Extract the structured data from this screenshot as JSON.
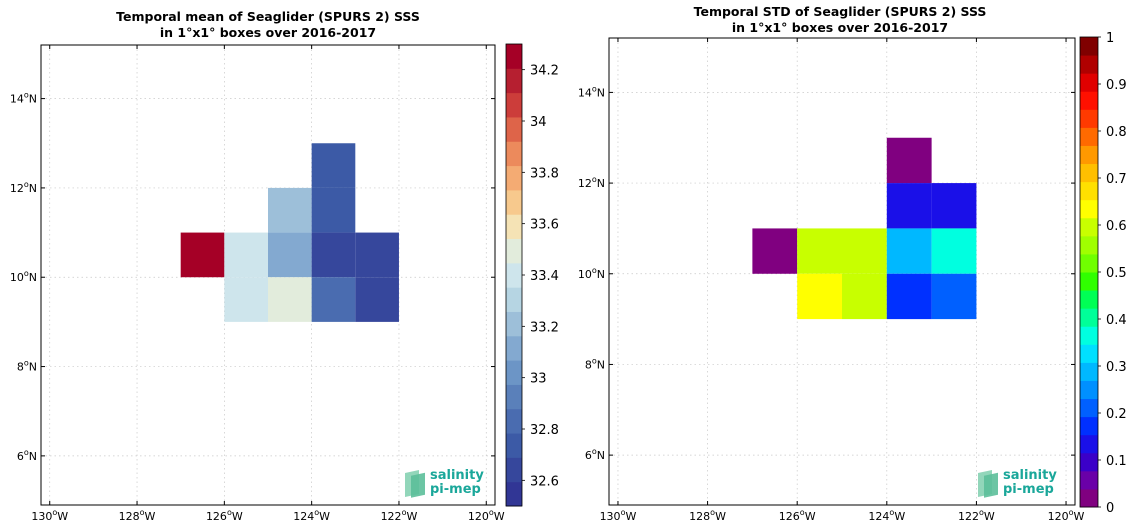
{
  "chart_data": [
    {
      "type": "heatmap",
      "title_line1": "Temporal mean of Seaglider (SPURS 2) SSS",
      "title_line2": "in 1°x1° boxes over 2016-2017",
      "xlim": [
        -130.2,
        -119.8
      ],
      "ylim": [
        4.9,
        15.2
      ],
      "x_ticks": [
        {
          "value": -130,
          "label": "130°W"
        },
        {
          "value": -128,
          "label": "128°W"
        },
        {
          "value": -126,
          "label": "126°W"
        },
        {
          "value": -124,
          "label": "124°W"
        },
        {
          "value": -122,
          "label": "122°W"
        },
        {
          "value": -120,
          "label": "120°W"
        }
      ],
      "y_ticks": [
        {
          "value": 6,
          "label": "6°N"
        },
        {
          "value": 8,
          "label": "8°N"
        },
        {
          "value": 10,
          "label": "10°N"
        },
        {
          "value": 12,
          "label": "12°N"
        },
        {
          "value": 14,
          "label": "14°N"
        }
      ],
      "grid": true,
      "cells": [
        {
          "lon": -127,
          "lat": 10,
          "value": 34.35
        },
        {
          "lon": -126,
          "lat": 10,
          "value": 33.4
        },
        {
          "lon": -126,
          "lat": 9,
          "value": 33.38
        },
        {
          "lon": -125,
          "lat": 11,
          "value": 33.25
        },
        {
          "lon": -125,
          "lat": 10,
          "value": 33.15
        },
        {
          "lon": -125,
          "lat": 9,
          "value": 33.45
        },
        {
          "lon": -124,
          "lat": 12,
          "value": 32.75
        },
        {
          "lon": -124,
          "lat": 11,
          "value": 32.75
        },
        {
          "lon": -124,
          "lat": 10,
          "value": 32.62
        },
        {
          "lon": -124,
          "lat": 9,
          "value": 32.85
        },
        {
          "lon": -123,
          "lat": 10,
          "value": 32.62
        },
        {
          "lon": -123,
          "lat": 9,
          "value": 32.6
        }
      ],
      "colorbar": {
        "vmin": 32.5,
        "vmax": 34.3,
        "ticks": [
          32.6,
          32.8,
          33,
          33.2,
          33.4,
          33.6,
          33.8,
          34,
          34.2
        ],
        "tick_labels": [
          "32.6",
          "32.8",
          "33",
          "33.2",
          "33.4",
          "33.6",
          "33.8",
          "34",
          "34.2"
        ],
        "colors": [
          "#313695",
          "#36479c",
          "#3c5aa6",
          "#4a6cb0",
          "#5a80ba",
          "#6c95c6",
          "#83a9d0",
          "#9dbfd9",
          "#b6d5e3",
          "#cee5ec",
          "#e2ecdc",
          "#f5e3b5",
          "#f7c98d",
          "#f4ab73",
          "#ec8a5c",
          "#de6449",
          "#cc3d3a",
          "#b61f30",
          "#a50026"
        ]
      }
    },
    {
      "type": "heatmap",
      "title_line1": "Temporal STD of Seaglider (SPURS 2) SSS",
      "title_line2": "in 1°x1° boxes over 2016-2017",
      "xlim": [
        -130.2,
        -119.8
      ],
      "ylim": [
        4.9,
        15.2
      ],
      "x_ticks": [
        {
          "value": -130,
          "label": "130°W"
        },
        {
          "value": -128,
          "label": "128°W"
        },
        {
          "value": -126,
          "label": "126°W"
        },
        {
          "value": -124,
          "label": "124°W"
        },
        {
          "value": -122,
          "label": "122°W"
        },
        {
          "value": -120,
          "label": "120°W"
        }
      ],
      "y_ticks": [
        {
          "value": 6,
          "label": "6°N"
        },
        {
          "value": 8,
          "label": "8°N"
        },
        {
          "value": 10,
          "label": "10°N"
        },
        {
          "value": 12,
          "label": "12°N"
        },
        {
          "value": 14,
          "label": "14°N"
        }
      ],
      "grid": true,
      "cells": [
        {
          "lon": -127,
          "lat": 10,
          "value": 0.02
        },
        {
          "lon": -126,
          "lat": 10,
          "value": 0.58
        },
        {
          "lon": -126,
          "lat": 9,
          "value": 0.63
        },
        {
          "lon": -125,
          "lat": 10,
          "value": 0.58
        },
        {
          "lon": -125,
          "lat": 9,
          "value": 0.58
        },
        {
          "lon": -124,
          "lat": 12,
          "value": 0.03
        },
        {
          "lon": -124,
          "lat": 11,
          "value": 0.12
        },
        {
          "lon": -123,
          "lat": 11,
          "value": 0.12
        },
        {
          "lon": -124,
          "lat": 10,
          "value": 0.28
        },
        {
          "lon": -124,
          "lat": 9,
          "value": 0.18
        },
        {
          "lon": -123,
          "lat": 10,
          "value": 0.38
        },
        {
          "lon": -123,
          "lat": 9,
          "value": 0.22
        }
      ],
      "colorbar": {
        "vmin": 0,
        "vmax": 1,
        "ticks": [
          0,
          0.1,
          0.2,
          0.3,
          0.4,
          0.5,
          0.6,
          0.7,
          0.8,
          0.9,
          1
        ],
        "tick_labels": [
          "0",
          "0.1",
          "0.2",
          "0.3",
          "0.4",
          "0.5",
          "0.6",
          "0.7",
          "0.8",
          "0.9",
          "1"
        ],
        "colors": [
          "#800080",
          "#6a00a8",
          "#3b00c8",
          "#1a10e8",
          "#0030ff",
          "#0060ff",
          "#0090ff",
          "#00b8ff",
          "#00e0ff",
          "#00ffe0",
          "#00ff99",
          "#00ff55",
          "#30ff00",
          "#70ff00",
          "#a0ff00",
          "#c8ff00",
          "#ffff00",
          "#ffe000",
          "#ffbf00",
          "#ff9900",
          "#ff6a00",
          "#ff3a00",
          "#ff1000",
          "#e00000",
          "#b00000",
          "#800000"
        ]
      }
    }
  ],
  "logo": {
    "line1": "salinity",
    "line2": "pi-mep"
  }
}
